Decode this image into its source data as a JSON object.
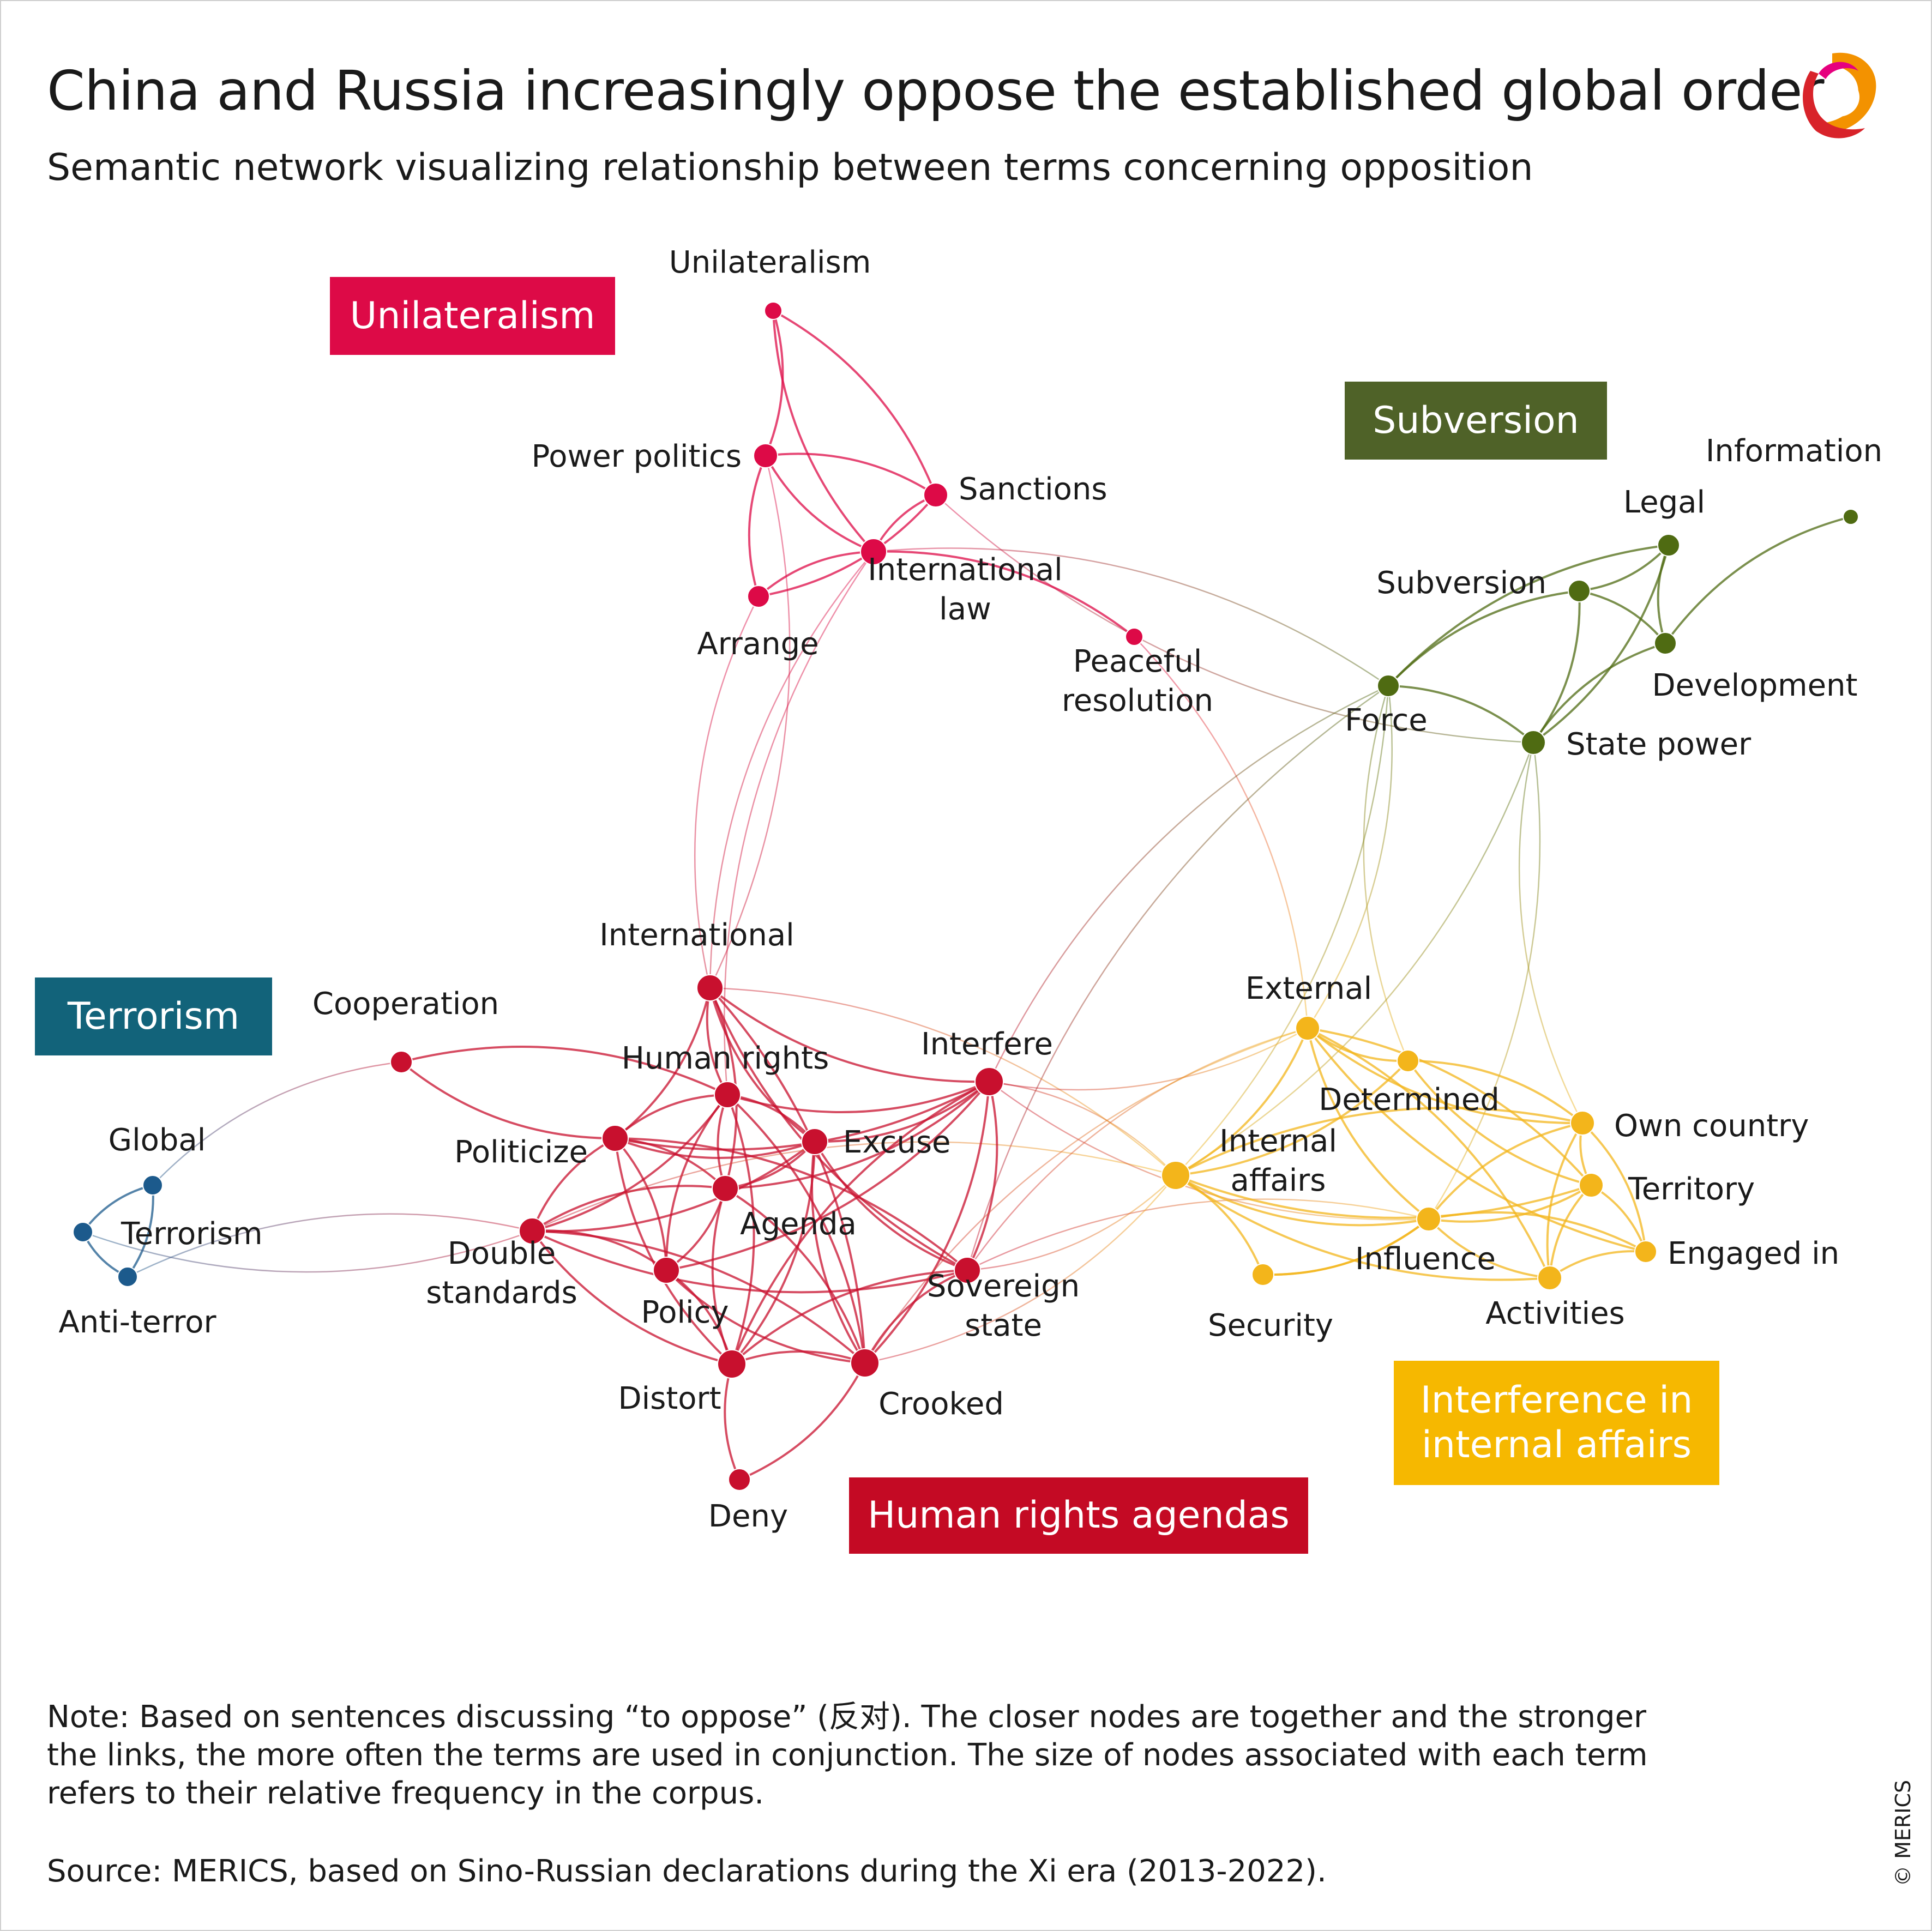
{
  "header": {
    "title": "China and Russia increasingly oppose the established global order",
    "subtitle": "Semantic network visualizing relationship between terms concerning opposition"
  },
  "clusters": {
    "unilateralism": {
      "label": "Unilateralism",
      "color": "#dd0a47"
    },
    "subversion": {
      "label": "Subversion",
      "color": "#4f6228"
    },
    "terrorism": {
      "label": "Terrorism",
      "color": "#12637a"
    },
    "interference": {
      "label": "Interference in internal affairs",
      "color": "#f6b800"
    },
    "human_rights": {
      "label": "Human rights agendas",
      "color": "#c40a24"
    }
  },
  "colors": {
    "unilateralism": "#dd0a47",
    "subversion": "#4f6b12",
    "terrorism": "#1c5a8c",
    "interference": "#f3b51b",
    "human_rights": "#c8102e"
  },
  "nodes": [
    {
      "id": "unilateralism",
      "label": "Unilateralism",
      "cluster": "unilateralism"
    },
    {
      "id": "power_politics",
      "label": "Power politics",
      "cluster": "unilateralism"
    },
    {
      "id": "sanctions",
      "label": "Sanctions",
      "cluster": "unilateralism"
    },
    {
      "id": "international_law",
      "label": "International law",
      "cluster": "unilateralism"
    },
    {
      "id": "arrange",
      "label": "Arrange",
      "cluster": "unilateralism"
    },
    {
      "id": "peaceful_resolution",
      "label": "Peaceful resolution",
      "cluster": "unilateralism"
    },
    {
      "id": "information",
      "label": "Information",
      "cluster": "subversion"
    },
    {
      "id": "legal",
      "label": "Legal",
      "cluster": "subversion"
    },
    {
      "id": "subversion",
      "label": "Subversion",
      "cluster": "subversion"
    },
    {
      "id": "development",
      "label": "Development",
      "cluster": "subversion"
    },
    {
      "id": "force",
      "label": "Force",
      "cluster": "subversion"
    },
    {
      "id": "state_power",
      "label": "State power",
      "cluster": "subversion"
    },
    {
      "id": "global",
      "label": "Global",
      "cluster": "terrorism"
    },
    {
      "id": "terrorism",
      "label": "Terrorism",
      "cluster": "terrorism"
    },
    {
      "id": "anti_terror",
      "label": "Anti-terror",
      "cluster": "terrorism"
    },
    {
      "id": "cooperation",
      "label": "Cooperation",
      "cluster": "human_rights"
    },
    {
      "id": "international",
      "label": "International",
      "cluster": "human_rights"
    },
    {
      "id": "human_rights",
      "label": "Human rights",
      "cluster": "human_rights"
    },
    {
      "id": "politicize",
      "label": "Politicize",
      "cluster": "human_rights"
    },
    {
      "id": "excuse",
      "label": "Excuse",
      "cluster": "human_rights"
    },
    {
      "id": "agenda",
      "label": "Agenda",
      "cluster": "human_rights"
    },
    {
      "id": "double_standards",
      "label": "Double standards",
      "cluster": "human_rights"
    },
    {
      "id": "policy",
      "label": "Policy",
      "cluster": "human_rights"
    },
    {
      "id": "interfere",
      "label": "Interfere",
      "cluster": "human_rights"
    },
    {
      "id": "sovereign_state",
      "label": "Sovereign state",
      "cluster": "human_rights"
    },
    {
      "id": "distort",
      "label": "Distort",
      "cluster": "human_rights"
    },
    {
      "id": "crooked",
      "label": "Crooked",
      "cluster": "human_rights"
    },
    {
      "id": "deny",
      "label": "Deny",
      "cluster": "human_rights"
    },
    {
      "id": "external",
      "label": "External",
      "cluster": "interference"
    },
    {
      "id": "determined",
      "label": "Determined",
      "cluster": "interference"
    },
    {
      "id": "own_country",
      "label": "Own country",
      "cluster": "interference"
    },
    {
      "id": "internal_affairs",
      "label": "Internal affairs",
      "cluster": "interference"
    },
    {
      "id": "territory",
      "label": "Territory",
      "cluster": "interference"
    },
    {
      "id": "influence",
      "label": "Influence",
      "cluster": "interference"
    },
    {
      "id": "engaged_in",
      "label": "Engaged in",
      "cluster": "interference"
    },
    {
      "id": "security",
      "label": "Security",
      "cluster": "interference"
    },
    {
      "id": "activities",
      "label": "Activities",
      "cluster": "interference"
    }
  ],
  "edges": [
    [
      "unilateralism",
      "power_politics"
    ],
    [
      "unilateralism",
      "international_law"
    ],
    [
      "unilateralism",
      "sanctions"
    ],
    [
      "power_politics",
      "international_law"
    ],
    [
      "power_politics",
      "sanctions"
    ],
    [
      "power_politics",
      "arrange"
    ],
    [
      "power_politics",
      "international"
    ],
    [
      "sanctions",
      "international_law"
    ],
    [
      "sanctions",
      "arrange"
    ],
    [
      "sanctions",
      "state_power"
    ],
    [
      "arrange",
      "international_law"
    ],
    [
      "arrange",
      "international"
    ],
    [
      "international_law",
      "peaceful_resolution"
    ],
    [
      "international_law",
      "international"
    ],
    [
      "international_law",
      "force"
    ],
    [
      "international_law",
      "human_rights"
    ],
    [
      "peaceful_resolution",
      "external"
    ],
    [
      "information",
      "development"
    ],
    [
      "legal",
      "subversion"
    ],
    [
      "legal",
      "development"
    ],
    [
      "legal",
      "state_power"
    ],
    [
      "legal",
      "force"
    ],
    [
      "subversion",
      "state_power"
    ],
    [
      "subversion",
      "force"
    ],
    [
      "subversion",
      "development"
    ],
    [
      "development",
      "state_power"
    ],
    [
      "force",
      "state_power"
    ],
    [
      "force",
      "interfere"
    ],
    [
      "force",
      "external"
    ],
    [
      "force",
      "determined"
    ],
    [
      "force",
      "internal_affairs"
    ],
    [
      "force",
      "sovereign_state"
    ],
    [
      "state_power",
      "internal_affairs"
    ],
    [
      "state_power",
      "own_country"
    ],
    [
      "state_power",
      "influence"
    ],
    [
      "global",
      "terrorism"
    ],
    [
      "global",
      "anti_terror"
    ],
    [
      "terrorism",
      "anti_terror"
    ],
    [
      "global",
      "cooperation"
    ],
    [
      "terrorism",
      "double_standards"
    ],
    [
      "anti_terror",
      "double_standards"
    ],
    [
      "cooperation",
      "politicize"
    ],
    [
      "cooperation",
      "human_rights"
    ],
    [
      "international",
      "human_rights"
    ],
    [
      "international",
      "politicize"
    ],
    [
      "international",
      "excuse"
    ],
    [
      "international",
      "agenda"
    ],
    [
      "international",
      "interfere"
    ],
    [
      "international",
      "crooked"
    ],
    [
      "international",
      "sovereign_state"
    ],
    [
      "international",
      "internal_affairs"
    ],
    [
      "human_rights",
      "politicize"
    ],
    [
      "human_rights",
      "excuse"
    ],
    [
      "human_rights",
      "agenda"
    ],
    [
      "human_rights",
      "double_standards"
    ],
    [
      "human_rights",
      "policy"
    ],
    [
      "human_rights",
      "distort"
    ],
    [
      "human_rights",
      "interfere"
    ],
    [
      "human_rights",
      "crooked"
    ],
    [
      "politicize",
      "excuse"
    ],
    [
      "politicize",
      "agenda"
    ],
    [
      "politicize",
      "double_standards"
    ],
    [
      "politicize",
      "policy"
    ],
    [
      "politicize",
      "interfere"
    ],
    [
      "politicize",
      "sovereign_state"
    ],
    [
      "politicize",
      "distort"
    ],
    [
      "excuse",
      "agenda"
    ],
    [
      "excuse",
      "sovereign_state"
    ],
    [
      "excuse",
      "distort"
    ],
    [
      "excuse",
      "crooked"
    ],
    [
      "excuse",
      "double_standards"
    ],
    [
      "agenda",
      "double_standards"
    ],
    [
      "agenda",
      "policy"
    ],
    [
      "agenda",
      "distort"
    ],
    [
      "agenda",
      "crooked"
    ],
    [
      "agenda",
      "interfere"
    ],
    [
      "double_standards",
      "policy"
    ],
    [
      "double_standards",
      "distort"
    ],
    [
      "double_standards",
      "crooked"
    ],
    [
      "double_standards",
      "sovereign_state"
    ],
    [
      "double_standards",
      "internal_affairs"
    ],
    [
      "policy",
      "interfere"
    ],
    [
      "policy",
      "distort"
    ],
    [
      "policy",
      "crooked"
    ],
    [
      "interfere",
      "sovereign_state"
    ],
    [
      "interfere",
      "distort"
    ],
    [
      "interfere",
      "crooked"
    ],
    [
      "interfere",
      "external"
    ],
    [
      "interfere",
      "internal_affairs"
    ],
    [
      "interfere",
      "influence"
    ],
    [
      "interfere",
      "excuse"
    ],
    [
      "sovereign_state",
      "crooked"
    ],
    [
      "sovereign_state",
      "external"
    ],
    [
      "sovereign_state",
      "internal_affairs"
    ],
    [
      "sovereign_state",
      "influence"
    ],
    [
      "sovereign_state",
      "distort"
    ],
    [
      "distort",
      "crooked"
    ],
    [
      "distort",
      "deny"
    ],
    [
      "crooked",
      "deny"
    ],
    [
      "crooked",
      "internal_affairs"
    ],
    [
      "crooked",
      "external"
    ],
    [
      "external",
      "determined"
    ],
    [
      "external",
      "internal_affairs"
    ],
    [
      "external",
      "own_country"
    ],
    [
      "external",
      "territory"
    ],
    [
      "external",
      "influence"
    ],
    [
      "external",
      "activities"
    ],
    [
      "external",
      "engaged_in"
    ],
    [
      "determined",
      "own_country"
    ],
    [
      "determined",
      "territory"
    ],
    [
      "determined",
      "internal_affairs"
    ],
    [
      "internal_affairs",
      "influence"
    ],
    [
      "internal_affairs",
      "security"
    ],
    [
      "internal_affairs",
      "activities"
    ],
    [
      "internal_affairs",
      "own_country"
    ],
    [
      "internal_affairs",
      "territory"
    ],
    [
      "influence",
      "own_country"
    ],
    [
      "influence",
      "territory"
    ],
    [
      "influence",
      "engaged_in"
    ],
    [
      "influence",
      "activities"
    ],
    [
      "influence",
      "security"
    ],
    [
      "own_country",
      "territory"
    ],
    [
      "own_country",
      "engaged_in"
    ],
    [
      "own_country",
      "activities"
    ],
    [
      "territory",
      "engaged_in"
    ],
    [
      "territory",
      "activities"
    ],
    [
      "activities",
      "engaged_in"
    ],
    [
      "security",
      "influence"
    ]
  ],
  "note": "Note: Based on sentences discussing “to oppose” (反对). The closer nodes are together and the stronger the links, the more often the terms are used in conjunction. The size of nodes associated with each term refers to their relative frequency in the corpus.",
  "source": "Source: MERICS, based on Sino-Russian declarations during the Xi era (2013-2022).",
  "copyright": "© MERICS"
}
